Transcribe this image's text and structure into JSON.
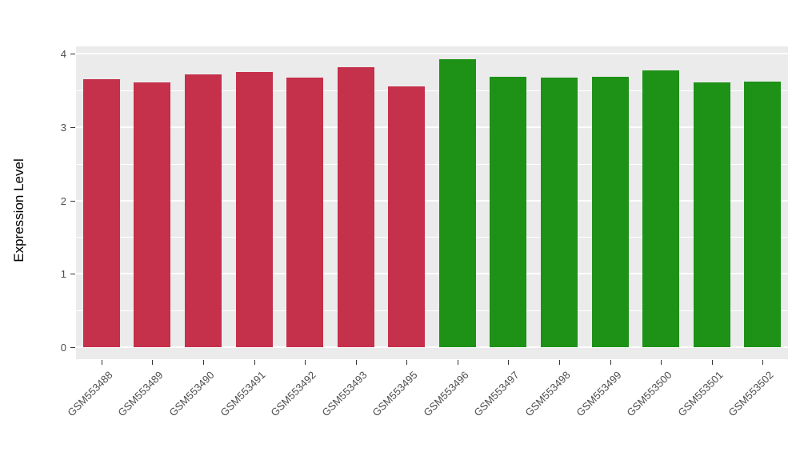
{
  "chart_data": {
    "type": "bar",
    "title": "",
    "xlabel": "",
    "ylabel": "Expression Level",
    "ylim": [
      0,
      4
    ],
    "yticks": [
      0,
      1,
      2,
      3,
      4
    ],
    "minor_gridlines": [
      0.5,
      1.5,
      2.5,
      3.5
    ],
    "grid": "on",
    "legend_position": "none",
    "panel_background": "#EBEBEB",
    "gridline_color": "#ffffff",
    "categories": [
      "GSM553488",
      "GSM553489",
      "GSM553490",
      "GSM553491",
      "GSM553492",
      "GSM553493",
      "GSM553495",
      "GSM553496",
      "GSM553497",
      "GSM553498",
      "GSM553499",
      "GSM553500",
      "GSM553501",
      "GSM553502"
    ],
    "values": [
      3.65,
      3.61,
      3.72,
      3.75,
      3.67,
      3.81,
      3.55,
      3.92,
      3.68,
      3.67,
      3.68,
      3.77,
      3.61,
      3.62
    ],
    "bar_colors": [
      "#C5304A",
      "#C5304A",
      "#C5304A",
      "#C5304A",
      "#C5304A",
      "#C5304A",
      "#C5304A",
      "#1E9117",
      "#1E9117",
      "#1E9117",
      "#1E9117",
      "#1E9117",
      "#1E9117",
      "#1E9117"
    ],
    "group_colors": {
      "red_group": "#C5304A",
      "green_group": "#1E9117"
    }
  }
}
